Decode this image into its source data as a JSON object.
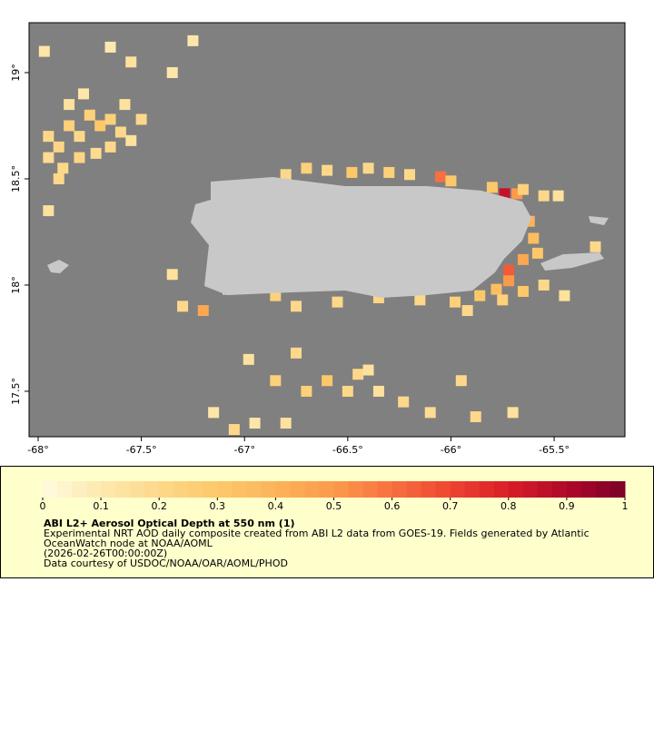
{
  "map": {
    "xlim": [
      -68.044,
      -65.157
    ],
    "ylim": [
      17.286,
      19.235
    ],
    "xticks": [
      {
        "value": -68,
        "label": "-68°"
      },
      {
        "value": -67.5,
        "label": "-67.5°"
      },
      {
        "value": -67,
        "label": "-67°"
      },
      {
        "value": -66.5,
        "label": "-66.5°"
      },
      {
        "value": -66,
        "label": "-66°"
      },
      {
        "value": -65.5,
        "label": "-65.5°"
      }
    ],
    "yticks": [
      {
        "value": 17.5,
        "label": "17.5°"
      },
      {
        "value": 18,
        "label": "18°"
      },
      {
        "value": 18.5,
        "label": "18.5°"
      },
      {
        "value": 19,
        "label": "19°"
      }
    ],
    "ocean_color": "#808080",
    "land_color": "#c8c8c8",
    "cells": [
      {
        "lon": -67.95,
        "lat": 18.7,
        "value": 0.2
      },
      {
        "lon": -67.9,
        "lat": 18.65,
        "value": 0.22
      },
      {
        "lon": -67.85,
        "lat": 18.75,
        "value": 0.25
      },
      {
        "lon": -67.8,
        "lat": 18.7,
        "value": 0.2
      },
      {
        "lon": -67.75,
        "lat": 18.8,
        "value": 0.25
      },
      {
        "lon": -67.7,
        "lat": 18.75,
        "value": 0.3
      },
      {
        "lon": -67.65,
        "lat": 18.78,
        "value": 0.25
      },
      {
        "lon": -67.6,
        "lat": 18.72,
        "value": 0.2
      },
      {
        "lon": -67.55,
        "lat": 18.68,
        "value": 0.15
      },
      {
        "lon": -67.95,
        "lat": 18.6,
        "value": 0.18
      },
      {
        "lon": -67.88,
        "lat": 18.55,
        "value": 0.2
      },
      {
        "lon": -67.8,
        "lat": 18.6,
        "value": 0.22
      },
      {
        "lon": -67.72,
        "lat": 18.62,
        "value": 0.18
      },
      {
        "lon": -67.65,
        "lat": 18.65,
        "value": 0.2
      },
      {
        "lon": -67.85,
        "lat": 18.85,
        "value": 0.15
      },
      {
        "lon": -67.78,
        "lat": 18.9,
        "value": 0.12
      },
      {
        "lon": -67.58,
        "lat": 18.85,
        "value": 0.15
      },
      {
        "lon": -67.5,
        "lat": 18.78,
        "value": 0.2
      },
      {
        "lon": -67.55,
        "lat": 19.05,
        "value": 0.15
      },
      {
        "lon": -67.35,
        "lat": 19.0,
        "value": 0.12
      },
      {
        "lon": -67.65,
        "lat": 19.12,
        "value": 0.1
      },
      {
        "lon": -67.97,
        "lat": 19.1,
        "value": 0.12
      },
      {
        "lon": -67.25,
        "lat": 19.15,
        "value": 0.12
      },
      {
        "lon": -67.95,
        "lat": 18.35,
        "value": 0.15
      },
      {
        "lon": -67.9,
        "lat": 18.5,
        "value": 0.2
      },
      {
        "lon": -66.8,
        "lat": 18.52,
        "value": 0.2
      },
      {
        "lon": -66.7,
        "lat": 18.55,
        "value": 0.25
      },
      {
        "lon": -66.6,
        "lat": 18.54,
        "value": 0.2
      },
      {
        "lon": -66.48,
        "lat": 18.53,
        "value": 0.3
      },
      {
        "lon": -66.4,
        "lat": 18.55,
        "value": 0.2
      },
      {
        "lon": -66.3,
        "lat": 18.53,
        "value": 0.25
      },
      {
        "lon": -66.2,
        "lat": 18.52,
        "value": 0.2
      },
      {
        "lon": -66.05,
        "lat": 18.51,
        "value": 0.6
      },
      {
        "lon": -66.0,
        "lat": 18.49,
        "value": 0.3
      },
      {
        "lon": -65.8,
        "lat": 18.46,
        "value": 0.3
      },
      {
        "lon": -65.74,
        "lat": 18.43,
        "value": 0.85
      },
      {
        "lon": -65.68,
        "lat": 18.43,
        "value": 0.5
      },
      {
        "lon": -65.55,
        "lat": 18.42,
        "value": 0.2
      },
      {
        "lon": -65.48,
        "lat": 18.42,
        "value": 0.15
      },
      {
        "lon": -65.62,
        "lat": 18.3,
        "value": 0.4
      },
      {
        "lon": -65.6,
        "lat": 18.22,
        "value": 0.35
      },
      {
        "lon": -65.58,
        "lat": 18.15,
        "value": 0.3
      },
      {
        "lon": -65.65,
        "lat": 18.12,
        "value": 0.45
      },
      {
        "lon": -65.72,
        "lat": 18.07,
        "value": 0.65
      },
      {
        "lon": -65.72,
        "lat": 18.02,
        "value": 0.5
      },
      {
        "lon": -65.78,
        "lat": 17.98,
        "value": 0.35
      },
      {
        "lon": -65.86,
        "lat": 17.95,
        "value": 0.3
      },
      {
        "lon": -65.75,
        "lat": 17.93,
        "value": 0.25
      },
      {
        "lon": -65.65,
        "lat": 17.97,
        "value": 0.3
      },
      {
        "lon": -65.55,
        "lat": 18.0,
        "value": 0.2
      },
      {
        "lon": -65.45,
        "lat": 17.95,
        "value": 0.15
      },
      {
        "lon": -67.12,
        "lat": 18.05,
        "value": 0.2
      },
      {
        "lon": -67.08,
        "lat": 17.98,
        "value": 0.25
      },
      {
        "lon": -66.85,
        "lat": 17.95,
        "value": 0.25
      },
      {
        "lon": -66.75,
        "lat": 17.9,
        "value": 0.2
      },
      {
        "lon": -66.55,
        "lat": 17.92,
        "value": 0.2
      },
      {
        "lon": -66.35,
        "lat": 17.94,
        "value": 0.22
      },
      {
        "lon": -66.15,
        "lat": 17.93,
        "value": 0.2
      },
      {
        "lon": -65.98,
        "lat": 17.92,
        "value": 0.25
      },
      {
        "lon": -65.92,
        "lat": 17.88,
        "value": 0.2
      },
      {
        "lon": -67.35,
        "lat": 18.05,
        "value": 0.15
      },
      {
        "lon": -67.3,
        "lat": 17.9,
        "value": 0.2
      },
      {
        "lon": -67.2,
        "lat": 17.88,
        "value": 0.45
      },
      {
        "lon": -66.98,
        "lat": 17.65,
        "value": 0.15
      },
      {
        "lon": -66.85,
        "lat": 17.55,
        "value": 0.25
      },
      {
        "lon": -66.7,
        "lat": 17.5,
        "value": 0.25
      },
      {
        "lon": -66.6,
        "lat": 17.55,
        "value": 0.3
      },
      {
        "lon": -66.5,
        "lat": 17.5,
        "value": 0.2
      },
      {
        "lon": -66.45,
        "lat": 17.58,
        "value": 0.2
      },
      {
        "lon": -66.35,
        "lat": 17.5,
        "value": 0.15
      },
      {
        "lon": -66.95,
        "lat": 17.35,
        "value": 0.12
      },
      {
        "lon": -66.8,
        "lat": 17.35,
        "value": 0.15
      },
      {
        "lon": -66.75,
        "lat": 17.68,
        "value": 0.2
      },
      {
        "lon": -66.23,
        "lat": 17.45,
        "value": 0.2
      },
      {
        "lon": -66.1,
        "lat": 17.4,
        "value": 0.18
      },
      {
        "lon": -65.88,
        "lat": 17.38,
        "value": 0.2
      },
      {
        "lon": -65.7,
        "lat": 17.4,
        "value": 0.15
      },
      {
        "lon": -67.15,
        "lat": 17.4,
        "value": 0.12
      },
      {
        "lon": -67.05,
        "lat": 17.32,
        "value": 0.2
      },
      {
        "lon": -66.4,
        "lat": 17.6,
        "value": 0.15
      },
      {
        "lon": -65.95,
        "lat": 17.55,
        "value": 0.2
      },
      {
        "lon": -65.3,
        "lat": 18.18,
        "value": 0.2
      },
      {
        "lon": -65.65,
        "lat": 18.45,
        "value": 0.25
      }
    ]
  },
  "colorbar": {
    "lim": [
      0,
      1
    ],
    "ticks": [
      0,
      0.1,
      0.2,
      0.3,
      0.4,
      0.5,
      0.6,
      0.7,
      0.8,
      0.9,
      1
    ],
    "colors": [
      "#fffae0",
      "#fde9b0",
      "#fdd88a",
      "#fdc86a",
      "#fcb45a",
      "#fb9a4a",
      "#f77040",
      "#ee4430",
      "#d81e28",
      "#b0082a",
      "#7a0026"
    ]
  },
  "legend": {
    "title": "ABI L2+ Aerosol Optical Depth at 550 nm (1)",
    "lines": [
      "Experimental NRT AOD daily composite created from ABI L2 data from GOES-19. Fields generated by Atlantic",
      "OceanWatch node at NOAA/AOML",
      "(2026-02-26T00:00:00Z)",
      "Data courtesy of USDOC/NOAA/OAR/AOML/PHOD"
    ]
  }
}
